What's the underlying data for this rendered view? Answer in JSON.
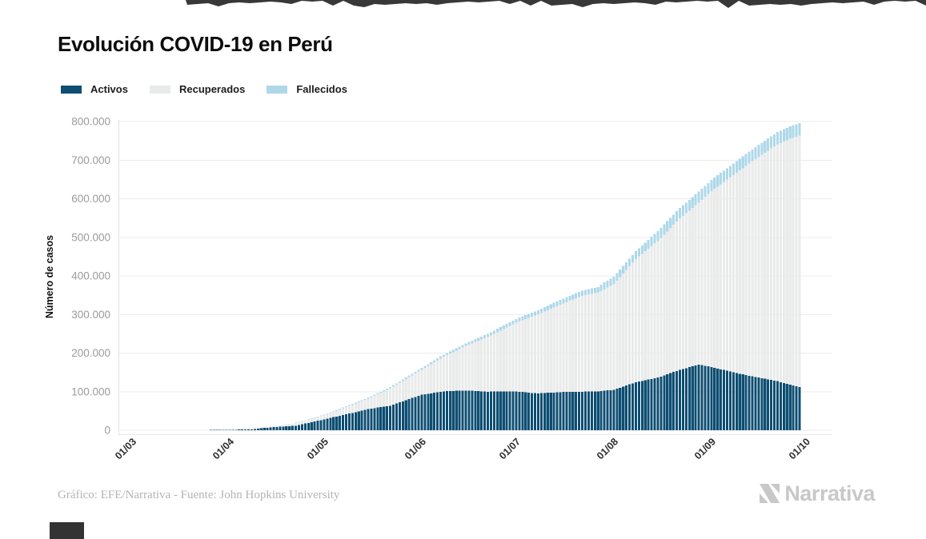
{
  "page": {
    "title": "Evolución COVID-19 en Perú",
    "credit": "Gráfico: EFE/Narrativa - Fuente: John Hopkins University",
    "brand": "Narrativa"
  },
  "legend": {
    "items": [
      {
        "label": "Activos",
        "color": "#0d4e72"
      },
      {
        "label": "Recuperados",
        "color": "#e9eaea"
      },
      {
        "label": "Fallecidos",
        "color": "#aed8ea"
      }
    ]
  },
  "chart_data": {
    "type": "bar",
    "stacked": true,
    "title": "Evolución COVID-19 en Perú",
    "xlabel": "",
    "ylabel": "Número de casos",
    "ylim": [
      0,
      800000
    ],
    "grid": "horizontal",
    "legend_position": "top-left",
    "x_tick_labels": [
      "01/03",
      "01/04",
      "01/05",
      "01/06",
      "01/07",
      "01/08",
      "01/09",
      "01/10"
    ],
    "x_tick_days": [
      0,
      31,
      61,
      92,
      122,
      153,
      184,
      214
    ],
    "y_tick_labels": [
      "0",
      "100.000",
      "200.000",
      "300.000",
      "400.000",
      "500.000",
      "600.000",
      "700.000",
      "800.000"
    ],
    "date_range": [
      "01/03",
      "01/10"
    ],
    "bar_days_total": 212,
    "anchor_days": [
      0,
      7,
      14,
      21,
      31,
      38,
      45,
      52,
      61,
      68,
      75,
      82,
      92,
      99,
      106,
      113,
      122,
      129,
      136,
      143,
      148,
      150,
      153,
      160,
      167,
      174,
      180,
      184,
      191,
      198,
      205,
      209,
      212
    ],
    "series": [
      {
        "name": "Activos",
        "color": "#0d4e72",
        "values": [
          0,
          10,
          45,
          340,
          900,
          2600,
          8100,
          11700,
          28200,
          41100,
          55000,
          63600,
          92000,
          101000,
          103000,
          100000,
          100400,
          95500,
          98900,
          99800,
          101000,
          103000,
          104600,
          124500,
          136400,
          156700,
          170000,
          164000,
          150000,
          138000,
          127000,
          118000,
          112000
        ]
      },
      {
        "name": "Recuperados",
        "color": "#e9eaea",
        "values": [
          0,
          0,
          0,
          5,
          400,
          1350,
          3100,
          7000,
          11100,
          19000,
          27100,
          44800,
          65000,
          89600,
          115600,
          142000,
          178200,
          204700,
          226400,
          248700,
          256300,
          262000,
          273900,
          319200,
          354200,
          392100,
          420000,
          455500,
          511600,
          564800,
          614000,
          637000,
          651500
        ]
      },
      {
        "name": "Fallecidos",
        "color": "#aed8ea",
        "values": [
          0,
          0,
          0,
          5,
          40,
          120,
          260,
          530,
          1100,
          1700,
          2400,
          3200,
          4600,
          5600,
          6700,
          8000,
          9900,
          11100,
          12400,
          13600,
          13800,
          18200,
          19000,
          20200,
          25600,
          27200,
          28300,
          28800,
          30000,
          31100,
          31900,
          32300,
          32500
        ]
      }
    ]
  }
}
